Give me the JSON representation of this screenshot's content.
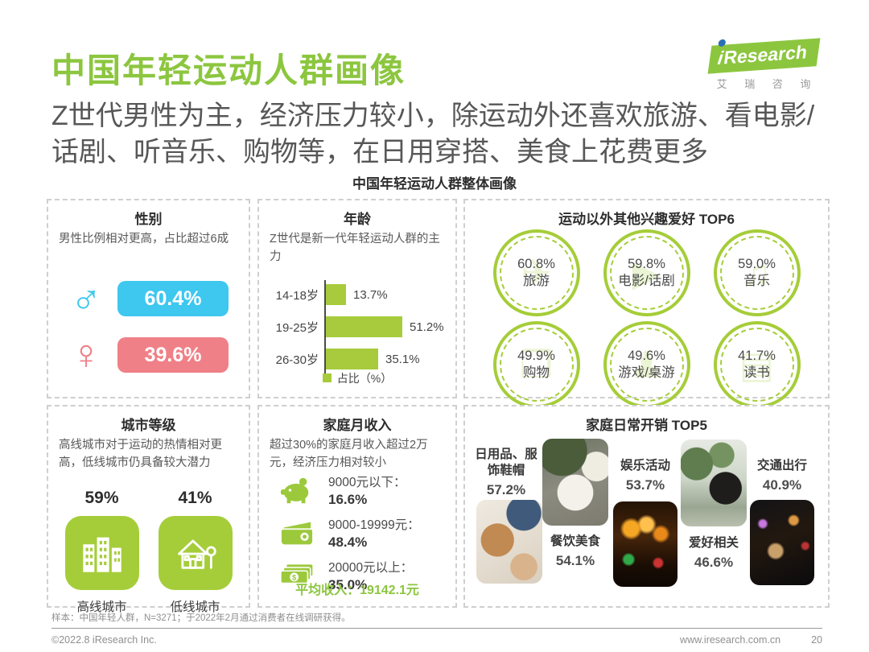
{
  "header": {
    "title": "中国年轻运动人群画像",
    "subtitle": "Z世代男性为主，经济压力较小，除运动外还喜欢旅游、看电影/话剧、听音乐、购物等，在日用穿搭、美食上花费更多",
    "section_heading": "中国年轻运动人群整体画像"
  },
  "logo": {
    "brand_i": "i",
    "brand": "Research",
    "subtext": "艾 瑞 咨 询"
  },
  "panels": {
    "gender": {
      "title": "性别",
      "desc": "男性比例相对更高，占比超过6成",
      "male_symbol": "♂",
      "female_symbol": "♀",
      "male_value": "60.4%",
      "female_value": "39.6%"
    },
    "age": {
      "title": "年龄",
      "desc": "Z世代是新一代年轻运动人群的主力",
      "rows": [
        {
          "label": "14-18岁",
          "value": "13.7%"
        },
        {
          "label": "19-25岁",
          "value": "51.2%"
        },
        {
          "label": "26-30岁",
          "value": "35.1%"
        }
      ],
      "legend": "占比（%）"
    },
    "interests": {
      "title": "运动以外其他兴趣爱好 TOP6",
      "items": [
        {
          "value": "60.8%",
          "label": "旅游",
          "icon": "travel-icon",
          "glyph": "✈"
        },
        {
          "value": "59.8%",
          "label": "电影/话剧",
          "icon": "movie-icon",
          "glyph": "▶"
        },
        {
          "value": "59.0%",
          "label": "音乐",
          "icon": "music-icon",
          "glyph": "♫"
        },
        {
          "value": "49.9%",
          "label": "购物",
          "icon": "shopping-icon",
          "glyph": "❒"
        },
        {
          "value": "49.6%",
          "label": "游戏/桌游",
          "icon": "games-icon",
          "glyph": "♟"
        },
        {
          "value": "41.7%",
          "label": "读书",
          "icon": "reading-icon",
          "glyph": "▤"
        }
      ]
    },
    "city": {
      "title": "城市等级",
      "desc": "高线城市对于运动的热情相对更高，低线城市仍具备较大潜力",
      "items": [
        {
          "value": "59%",
          "label": "高线城市",
          "icon": "city-buildings-icon"
        },
        {
          "value": "41%",
          "label": "低线城市",
          "icon": "house-tree-icon"
        }
      ]
    },
    "income": {
      "title": "家庭月收入",
      "desc": "超过30%的家庭月收入超过2万元，经济压力相对较小",
      "items": [
        {
          "label": "9000元以下：",
          "value": "16.6%",
          "icon": "piggy-bank-icon"
        },
        {
          "label": "9000-19999元：",
          "value": "48.4%",
          "icon": "wallet-icon"
        },
        {
          "label": "20000元以上：",
          "value": "35.0%",
          "icon": "banknotes-icon"
        }
      ],
      "average": "平均收入：19142.1元"
    },
    "expenses": {
      "title": "家庭日常开销 TOP5",
      "items": [
        {
          "label": "日用品、服饰鞋帽",
          "value": "57.2%",
          "photo": "fashion-flatlay"
        },
        {
          "label": "餐饮美食",
          "value": "54.1%",
          "photo": "noodle-bowls"
        },
        {
          "label": "娱乐活动",
          "value": "53.7%",
          "photo": "concert-crowd"
        },
        {
          "label": "爱好相关",
          "value": "46.6%",
          "photo": "man-with-plants"
        },
        {
          "label": "交通出行",
          "value": "40.9%",
          "photo": "night-driving"
        }
      ]
    }
  },
  "footer": {
    "footnote": "样本：中国年轻人群，N=3271；于2022年2月通过消费者在线调研获得。",
    "copyright": "©2022.8 iResearch Inc.",
    "website": "www.iresearch.com.cn",
    "page_number": "20"
  },
  "colors": {
    "brand_green": "#8CC63F",
    "chart_green": "#A7CB3C",
    "male_blue": "#3EC7EF",
    "female_pink": "#F08087"
  },
  "chart_data": [
    {
      "id": "gender",
      "type": "bar",
      "title": "性别",
      "categories": [
        "男",
        "女"
      ],
      "values": [
        60.4,
        39.6
      ],
      "unit": "%",
      "colors": [
        "#3EC7EF",
        "#F08087"
      ]
    },
    {
      "id": "age",
      "type": "bar",
      "orientation": "horizontal",
      "title": "年龄",
      "categories": [
        "14-18岁",
        "19-25岁",
        "26-30岁"
      ],
      "values": [
        13.7,
        51.2,
        35.1
      ],
      "unit": "%",
      "legend": [
        "占比（%）"
      ],
      "xlim": [
        0,
        60
      ]
    },
    {
      "id": "interests_top6",
      "type": "bar",
      "title": "运动以外其他兴趣爱好 TOP6",
      "categories": [
        "旅游",
        "电影/话剧",
        "音乐",
        "购物",
        "游戏/桌游",
        "读书"
      ],
      "values": [
        60.8,
        59.8,
        59.0,
        49.9,
        49.6,
        41.7
      ],
      "unit": "%"
    },
    {
      "id": "city_tier",
      "type": "pie",
      "title": "城市等级",
      "categories": [
        "高线城市",
        "低线城市"
      ],
      "values": [
        59,
        41
      ],
      "unit": "%"
    },
    {
      "id": "income",
      "type": "bar",
      "title": "家庭月收入",
      "categories": [
        "9000元以下",
        "9000-19999元",
        "20000元以上"
      ],
      "values": [
        16.6,
        48.4,
        35.0
      ],
      "unit": "%",
      "annotation": "平均收入：19142.1元"
    },
    {
      "id": "expenses_top5",
      "type": "bar",
      "title": "家庭日常开销 TOP5",
      "categories": [
        "日用品、服饰鞋帽",
        "餐饮美食",
        "娱乐活动",
        "爱好相关",
        "交通出行"
      ],
      "values": [
        57.2,
        54.1,
        53.7,
        46.6,
        40.9
      ],
      "unit": "%"
    }
  ]
}
